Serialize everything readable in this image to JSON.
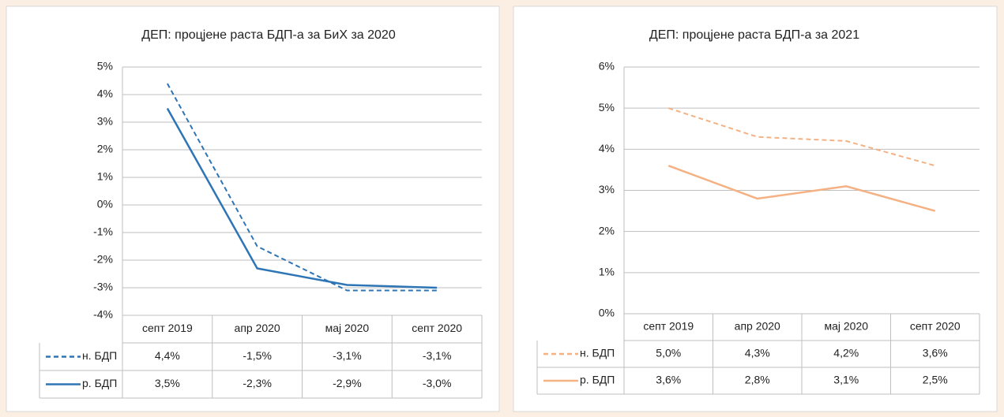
{
  "chart_data": [
    {
      "type": "line",
      "title": "ДЕП: процјене раста БДП-а за БиХ за 2020",
      "categories": [
        "септ 2019",
        "апр 2020",
        "мај 2020",
        "септ 2020"
      ],
      "series": [
        {
          "name": "н. БДП",
          "color": "#2e75b6",
          "line_style": "dashed",
          "values": [
            4.4,
            -1.5,
            -3.1,
            -3.1
          ],
          "value_labels": [
            "4,4%",
            "-1,5%",
            "-3,1%",
            "-3,1%"
          ]
        },
        {
          "name": "р. БДП",
          "color": "#2e75b6",
          "line_style": "solid",
          "values": [
            3.5,
            -2.3,
            -2.9,
            -3.0
          ],
          "value_labels": [
            "3,5%",
            "-2,3%",
            "-2,9%",
            "-3,0%"
          ]
        }
      ],
      "ylim": [
        -4,
        5
      ],
      "yticks": [
        {
          "value": -4,
          "label": "-4%"
        },
        {
          "value": -3,
          "label": "-3%"
        },
        {
          "value": -2,
          "label": "-2%"
        },
        {
          "value": -1,
          "label": "-1%"
        },
        {
          "value": 0,
          "label": "0%"
        },
        {
          "value": 1,
          "label": "1%"
        },
        {
          "value": 2,
          "label": "2%"
        },
        {
          "value": 3,
          "label": "3%"
        },
        {
          "value": 4,
          "label": "4%"
        },
        {
          "value": 5,
          "label": "5%"
        }
      ],
      "grid": true,
      "data_table": true
    },
    {
      "type": "line",
      "title": "ДЕП: процјене раста БДП-а за 2021",
      "categories": [
        "септ 2019",
        "апр 2020",
        "мај 2020",
        "септ 2020"
      ],
      "series": [
        {
          "name": "н. БДП",
          "color": "#f4b183",
          "line_style": "dashed",
          "values": [
            5.0,
            4.3,
            4.2,
            3.6
          ],
          "value_labels": [
            "5,0%",
            "4,3%",
            "4,2%",
            "3,6%"
          ]
        },
        {
          "name": "р. БДП",
          "color": "#f4b183",
          "line_style": "solid",
          "values": [
            3.6,
            2.8,
            3.1,
            2.5
          ],
          "value_labels": [
            "3,6%",
            "2,8%",
            "3,1%",
            "2,5%"
          ]
        }
      ],
      "ylim": [
        0,
        6
      ],
      "yticks": [
        {
          "value": 0,
          "label": "0%"
        },
        {
          "value": 1,
          "label": "1%"
        },
        {
          "value": 2,
          "label": "2%"
        },
        {
          "value": 3,
          "label": "3%"
        },
        {
          "value": 4,
          "label": "4%"
        },
        {
          "value": 5,
          "label": "5%"
        },
        {
          "value": 6,
          "label": "6%"
        }
      ],
      "grid": true,
      "data_table": true
    }
  ]
}
